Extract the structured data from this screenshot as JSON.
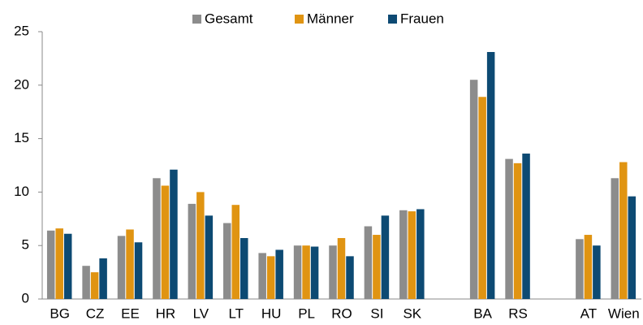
{
  "chart_data": {
    "type": "bar",
    "categories": [
      "BG",
      "CZ",
      "EE",
      "HR",
      "LV",
      "LT",
      "HU",
      "PL",
      "RO",
      "SI",
      "SK",
      null,
      "BA",
      "RS",
      null,
      "AT",
      "Wien"
    ],
    "series": [
      {
        "name": "Gesamt",
        "color": "#8c8c8c",
        "values": [
          6.4,
          3.1,
          5.9,
          11.3,
          8.9,
          7.1,
          4.3,
          5.0,
          5.0,
          6.8,
          8.3,
          null,
          20.5,
          13.1,
          null,
          5.6,
          11.3
        ]
      },
      {
        "name": "Männer",
        "color": "#e09412",
        "values": [
          6.6,
          2.5,
          6.5,
          10.6,
          10.0,
          8.8,
          4.0,
          5.0,
          5.7,
          6.0,
          8.2,
          null,
          18.9,
          12.7,
          null,
          6.0,
          12.8
        ]
      },
      {
        "name": "Frauen",
        "color": "#0d4a73",
        "values": [
          6.1,
          3.8,
          5.3,
          12.1,
          7.8,
          5.7,
          4.6,
          4.9,
          4.0,
          7.8,
          8.4,
          null,
          23.1,
          13.6,
          null,
          5.0,
          9.6
        ]
      }
    ],
    "ylim": [
      0,
      25
    ],
    "yticks": [
      0,
      5,
      10,
      15,
      20,
      25
    ],
    "grid": false,
    "legend": "top"
  }
}
